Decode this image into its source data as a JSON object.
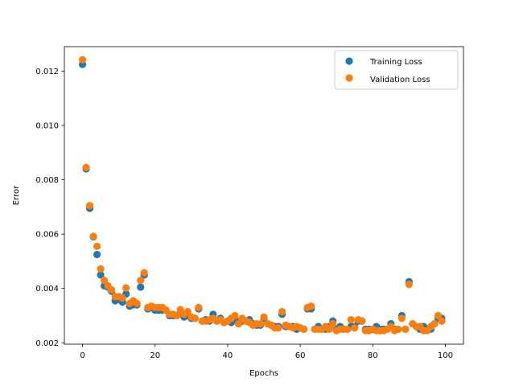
{
  "chart_data": {
    "type": "scatter",
    "title": "",
    "xlabel": "Epochs",
    "ylabel": "Error",
    "xlim": [
      -5,
      105
    ],
    "ylim": [
      0.00195,
      0.0129
    ],
    "xticks": [
      0,
      20,
      40,
      60,
      80,
      100
    ],
    "yticks": [
      0.002,
      0.004,
      0.006,
      0.008,
      0.01,
      0.012
    ],
    "xtick_labels": [
      "0",
      "20",
      "40",
      "60",
      "80",
      "100"
    ],
    "ytick_labels": [
      "0.002",
      "0.004",
      "0.006",
      "0.008",
      "0.010",
      "0.012"
    ],
    "grid": false,
    "legend_position": "top-right",
    "series": [
      {
        "name": "Training Loss",
        "color": "#1f77b4",
        "x": [
          0,
          1,
          2,
          3,
          4,
          5,
          6,
          7,
          8,
          9,
          10,
          11,
          12,
          13,
          14,
          15,
          16,
          17,
          18,
          19,
          20,
          21,
          22,
          23,
          24,
          25,
          26,
          27,
          28,
          29,
          30,
          31,
          32,
          33,
          34,
          35,
          36,
          37,
          38,
          39,
          40,
          41,
          42,
          43,
          44,
          45,
          46,
          47,
          48,
          49,
          50,
          51,
          52,
          53,
          54,
          55,
          56,
          57,
          58,
          59,
          60,
          61,
          62,
          63,
          64,
          65,
          66,
          67,
          68,
          69,
          70,
          71,
          72,
          73,
          74,
          75,
          76,
          77,
          78,
          79,
          80,
          81,
          82,
          83,
          84,
          85,
          86,
          87,
          88,
          89,
          90,
          91,
          92,
          93,
          94,
          95,
          96,
          97,
          98,
          99
        ],
        "y": [
          0.01225,
          0.0084,
          0.00695,
          0.0059,
          0.00525,
          0.0045,
          0.0041,
          0.00405,
          0.0039,
          0.00355,
          0.0036,
          0.0035,
          0.0038,
          0.00335,
          0.0034,
          0.0034,
          0.00405,
          0.0045,
          0.00325,
          0.0033,
          0.0032,
          0.0032,
          0.0032,
          0.0032,
          0.003,
          0.003,
          0.003,
          0.0031,
          0.00295,
          0.003,
          0.0029,
          0.0029,
          0.00325,
          0.0028,
          0.00285,
          0.0028,
          0.00305,
          0.0028,
          0.0029,
          0.00275,
          0.0028,
          0.00275,
          0.00285,
          0.0027,
          0.0028,
          0.0028,
          0.00285,
          0.0027,
          0.00265,
          0.00265,
          0.0029,
          0.0027,
          0.00265,
          0.0026,
          0.0026,
          0.00305,
          0.0026,
          0.0026,
          0.0026,
          0.0025,
          0.00255,
          0.0025,
          0.00325,
          0.00325,
          0.0025,
          0.0026,
          0.0025,
          0.0025,
          0.0026,
          0.0028,
          0.0025,
          0.0026,
          0.0025,
          0.0025,
          0.0026,
          0.0026,
          0.0028,
          0.0028,
          0.0025,
          0.0025,
          0.0025,
          0.0026,
          0.0025,
          0.0025,
          0.0025,
          0.0027,
          0.0025,
          0.0025,
          0.003,
          0.0025,
          0.00425,
          0.0027,
          0.0026,
          0.0025,
          0.0026,
          0.0025,
          0.0025,
          0.0027,
          0.0029,
          0.0029
        ]
      },
      {
        "name": "Validation Loss",
        "color": "#ff7f0e",
        "x": [
          0,
          1,
          2,
          3,
          4,
          5,
          6,
          7,
          8,
          9,
          10,
          11,
          12,
          13,
          14,
          15,
          16,
          17,
          18,
          19,
          20,
          21,
          22,
          23,
          24,
          25,
          26,
          27,
          28,
          29,
          30,
          31,
          32,
          33,
          34,
          35,
          36,
          37,
          38,
          39,
          40,
          41,
          42,
          43,
          44,
          45,
          46,
          47,
          48,
          49,
          50,
          51,
          52,
          53,
          54,
          55,
          56,
          57,
          58,
          59,
          60,
          61,
          62,
          63,
          64,
          65,
          66,
          67,
          68,
          69,
          70,
          71,
          72,
          73,
          74,
          75,
          76,
          77,
          78,
          79,
          80,
          81,
          82,
          83,
          84,
          85,
          86,
          87,
          88,
          89,
          90,
          91,
          92,
          93,
          94,
          95,
          96,
          97,
          98,
          99
        ],
        "y": [
          0.01242,
          0.00845,
          0.00705,
          0.00592,
          0.00555,
          0.00472,
          0.0043,
          0.0041,
          0.00395,
          0.0037,
          0.0037,
          0.00365,
          0.00402,
          0.00345,
          0.00355,
          0.00345,
          0.0043,
          0.00458,
          0.0033,
          0.00335,
          0.0033,
          0.0033,
          0.0033,
          0.0032,
          0.00305,
          0.00305,
          0.003,
          0.00322,
          0.00305,
          0.00315,
          0.00295,
          0.0029,
          0.0033,
          0.0028,
          0.0028,
          0.00285,
          0.0029,
          0.0028,
          0.00285,
          0.00275,
          0.0028,
          0.0029,
          0.003,
          0.0027,
          0.0029,
          0.0028,
          0.00275,
          0.00265,
          0.0027,
          0.0027,
          0.00295,
          0.0027,
          0.00265,
          0.00255,
          0.00255,
          0.00315,
          0.00265,
          0.0026,
          0.00255,
          0.0026,
          0.00255,
          0.0025,
          0.0033,
          0.00335,
          0.0025,
          0.0025,
          0.0025,
          0.0026,
          0.0025,
          0.0027,
          0.00245,
          0.0025,
          0.0025,
          0.0025,
          0.00285,
          0.00255,
          0.00285,
          0.0028,
          0.00245,
          0.00245,
          0.0025,
          0.00245,
          0.00245,
          0.00245,
          0.0025,
          0.0026,
          0.00245,
          0.0025,
          0.0029,
          0.0025,
          0.00415,
          0.0027,
          0.0026,
          0.0026,
          0.00245,
          0.00245,
          0.0026,
          0.0027,
          0.003,
          0.0028
        ]
      }
    ]
  }
}
